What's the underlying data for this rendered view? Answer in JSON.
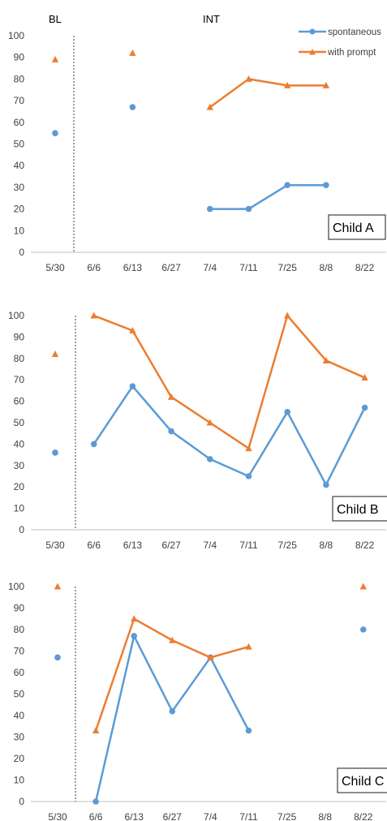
{
  "colors": {
    "spontaneous": "#5B9BD5",
    "with_prompt": "#ED7D31",
    "axis": "#BFBFBF",
    "phase_line": "#404040"
  },
  "phase_labels": {
    "baseline": "BL",
    "intervention": "INT"
  },
  "legend": {
    "spontaneous": "spontaneous",
    "with_prompt": "with prompt",
    "placement": "top-right"
  },
  "chart_data": [
    {
      "type": "line",
      "label": "Child A",
      "categories": [
        "5/30",
        "6/6",
        "6/13",
        "6/27",
        "7/4",
        "7/11",
        "7/25",
        "8/8",
        "8/22"
      ],
      "ylim": [
        0,
        100
      ],
      "yticks": [
        0,
        10,
        20,
        30,
        40,
        50,
        60,
        70,
        80,
        90,
        100
      ],
      "series": [
        {
          "name": "spontaneous",
          "values": [
            55,
            null,
            67,
            null,
            20,
            20,
            31,
            31,
            null
          ]
        },
        {
          "name": "with prompt",
          "values": [
            89,
            null,
            92,
            null,
            67,
            80,
            77,
            77,
            null
          ]
        }
      ]
    },
    {
      "type": "line",
      "label": "Child B",
      "categories": [
        "5/30",
        "6/6",
        "6/13",
        "6/27",
        "7/4",
        "7/11",
        "7/25",
        "8/8",
        "8/22"
      ],
      "ylim": [
        0,
        100
      ],
      "yticks": [
        0,
        10,
        20,
        30,
        40,
        50,
        60,
        70,
        80,
        90,
        100
      ],
      "series": [
        {
          "name": "spontaneous",
          "values": [
            36,
            40,
            67,
            46,
            33,
            25,
            55,
            21,
            57
          ]
        },
        {
          "name": "with prompt",
          "values": [
            82,
            100,
            93,
            62,
            50,
            38,
            100,
            79,
            71
          ]
        }
      ]
    },
    {
      "type": "line",
      "label": "Child C",
      "categories": [
        "5/30",
        "6/6",
        "6/13",
        "6/27",
        "7/4",
        "7/11",
        "7/25",
        "8/8",
        "8/22"
      ],
      "ylim": [
        0,
        100
      ],
      "yticks": [
        0,
        10,
        20,
        30,
        40,
        50,
        60,
        70,
        80,
        90,
        100
      ],
      "series": [
        {
          "name": "spontaneous",
          "values": [
            67,
            0,
            77,
            42,
            67,
            33,
            null,
            null,
            80
          ]
        },
        {
          "name": "with prompt",
          "values": [
            100,
            33,
            85,
            75,
            67,
            72,
            null,
            null,
            100
          ]
        }
      ]
    }
  ]
}
